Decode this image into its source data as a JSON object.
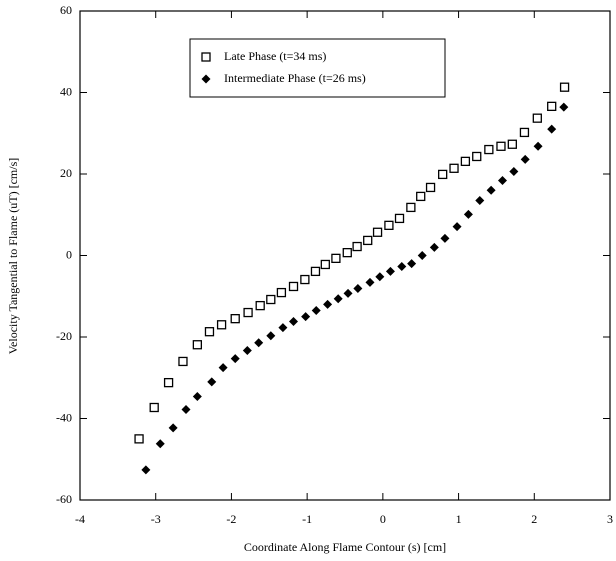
{
  "chart_data": {
    "type": "scatter",
    "x_label": "Coordinate Along Flame Contour (s)  [cm]",
    "y_label": "Velocity Tangential to Flame (uT)  [cm/s]",
    "xlim": [
      -4,
      3
    ],
    "ylim": [
      -60,
      60
    ],
    "xticks": [
      -4,
      -3,
      -2,
      -1,
      0,
      1,
      2,
      3
    ],
    "yticks": [
      -60,
      -40,
      -20,
      0,
      20,
      40,
      60
    ],
    "legend": "upper center",
    "series": [
      {
        "name": "Late Phase (t=34 ms)",
        "color": "#000000",
        "marker": "square-open",
        "x": [
          -3.22,
          -3.02,
          -2.83,
          -2.64,
          -2.45,
          -2.29,
          -2.13,
          -1.95,
          -1.78,
          -1.62,
          -1.48,
          -1.34,
          -1.18,
          -1.03,
          -0.89,
          -0.76,
          -0.62,
          -0.47,
          -0.34,
          -0.2,
          -0.07,
          0.08,
          0.22,
          0.37,
          0.5,
          0.63,
          0.79,
          0.94,
          1.09,
          1.24,
          1.4,
          1.56,
          1.71,
          1.87,
          2.04,
          2.23,
          2.4
        ],
        "values": [
          -45,
          -37.3,
          -31.2,
          -26,
          -21.9,
          -18.7,
          -17,
          -15.5,
          -14,
          -12.3,
          -10.8,
          -9.1,
          -7.6,
          -5.9,
          -3.9,
          -2.2,
          -0.7,
          0.7,
          2.2,
          3.7,
          5.7,
          7.4,
          9.1,
          11.8,
          14.5,
          16.7,
          19.9,
          21.4,
          23.1,
          24.3,
          26,
          26.8,
          27.3,
          30.2,
          33.7,
          36.6,
          41.3
        ]
      },
      {
        "name": "Intermediate Phase (t=26 ms)",
        "color": "#000000",
        "marker": "diamond",
        "x": [
          -3.13,
          -2.94,
          -2.77,
          -2.6,
          -2.45,
          -2.26,
          -2.11,
          -1.95,
          -1.79,
          -1.64,
          -1.48,
          -1.32,
          -1.18,
          -1.02,
          -0.88,
          -0.73,
          -0.59,
          -0.46,
          -0.33,
          -0.17,
          -0.04,
          0.1,
          0.25,
          0.38,
          0.52,
          0.68,
          0.82,
          0.98,
          1.13,
          1.28,
          1.43,
          1.58,
          1.73,
          1.88,
          2.05,
          2.23,
          2.39
        ],
        "values": [
          -52.6,
          -46.2,
          -42.3,
          -37.8,
          -34.6,
          -31,
          -27.5,
          -25.3,
          -23.3,
          -21.4,
          -19.7,
          -17.7,
          -16.2,
          -15,
          -13.5,
          -12,
          -10.6,
          -9.3,
          -8.1,
          -6.6,
          -5.2,
          -3.9,
          -2.7,
          -2,
          0,
          2,
          4.2,
          7.1,
          10.1,
          13.5,
          16,
          18.4,
          20.6,
          23.6,
          26.8,
          31,
          36.4
        ]
      }
    ]
  }
}
